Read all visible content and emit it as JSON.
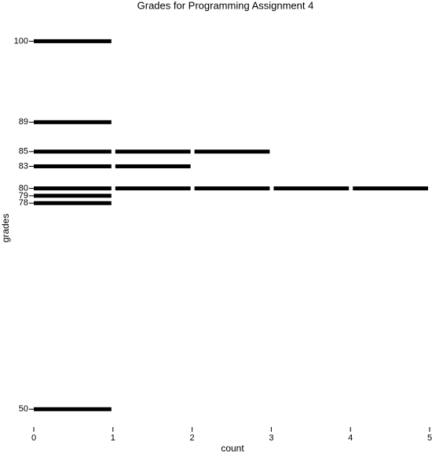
{
  "chart_data": {
    "type": "bar",
    "orientation": "horizontal",
    "title": "Grades for Programming Assignment 4",
    "xlabel": "count",
    "ylabel": "grades",
    "y": [
      100,
      89,
      85,
      83,
      80,
      79,
      78,
      50
    ],
    "values": [
      1,
      1,
      3,
      2,
      5,
      1,
      1,
      1
    ],
    "color": "#000000",
    "xlim": [
      0,
      5
    ],
    "xticks": [
      0,
      1,
      2,
      3,
      4,
      5
    ],
    "ylim": [
      48,
      102.5
    ],
    "yticks": [
      50,
      78,
      79,
      80,
      83,
      85,
      89,
      100
    ]
  }
}
